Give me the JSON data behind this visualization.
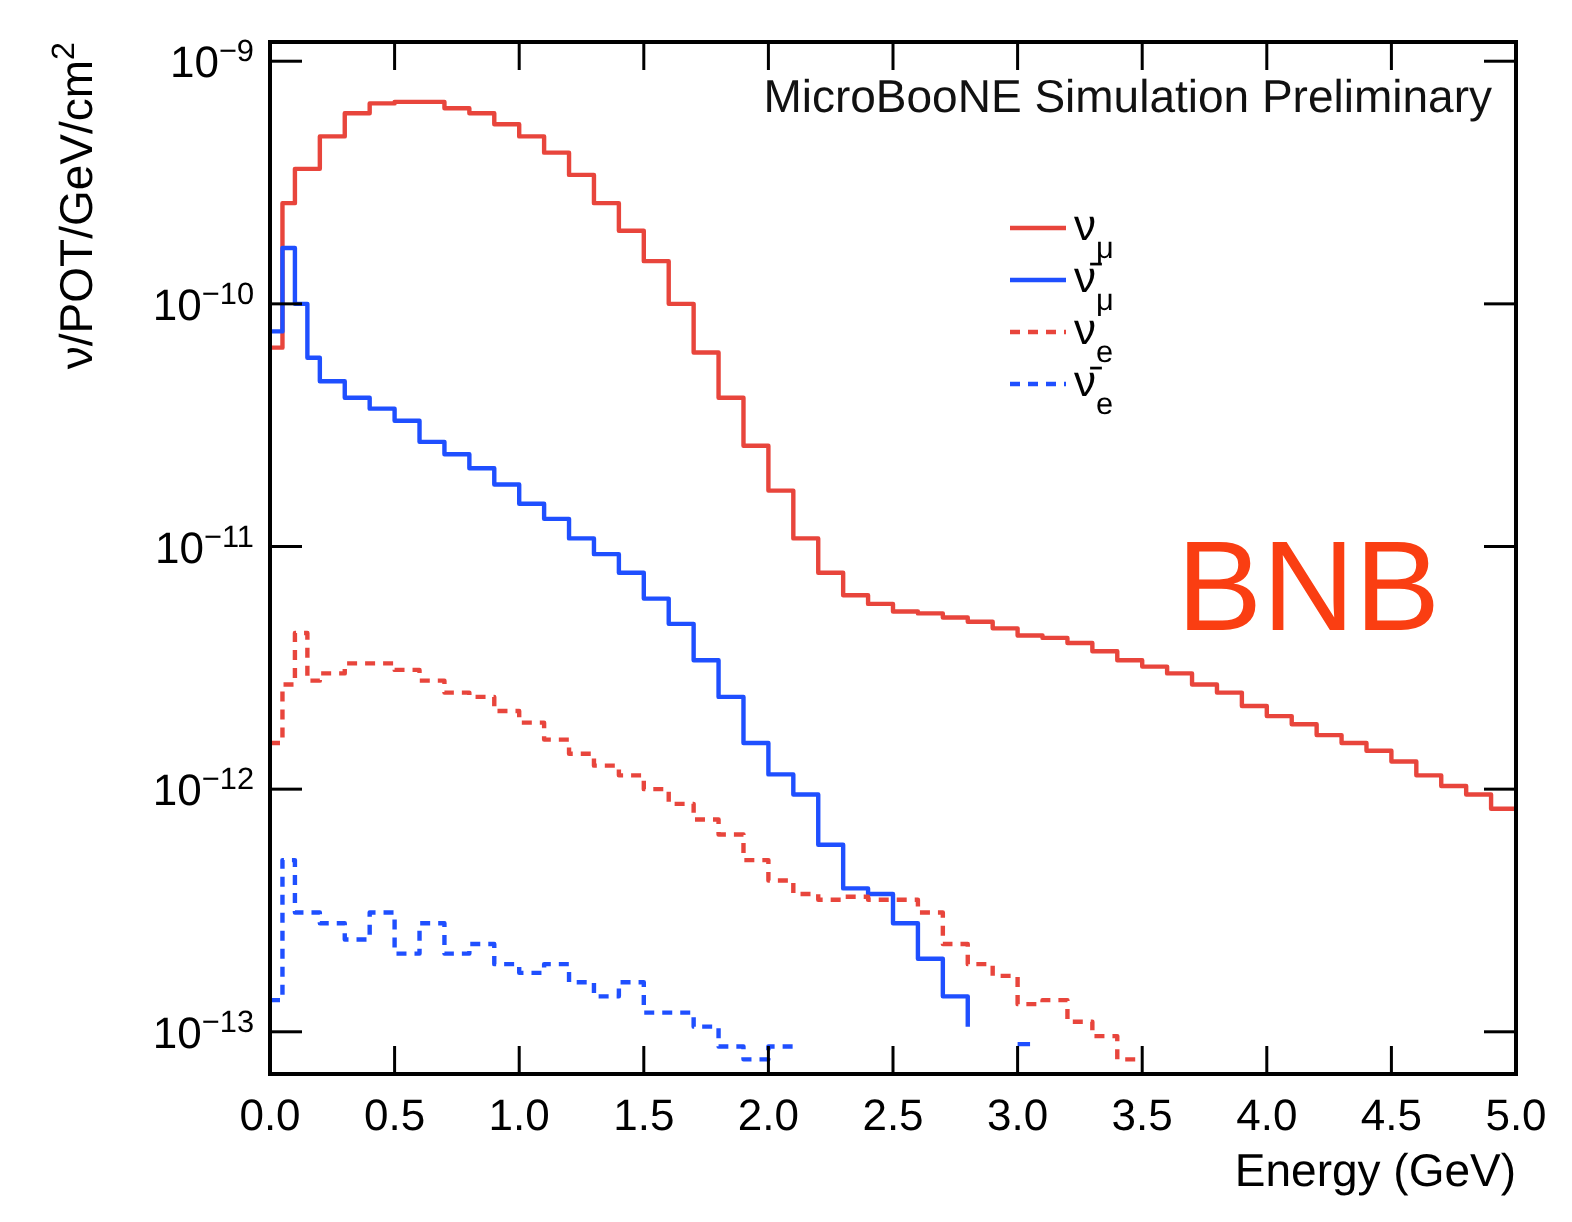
{
  "chart_data": {
    "type": "step",
    "xlabel": "Energy (GeV)",
    "ylabel": "ν/POT/GeV/cm$^{2}$",
    "log": "y",
    "legend": "top right",
    "xlim": [
      0,
      5
    ],
    "ylim": [
      6.7e-14,
      1.2e-09
    ],
    "xticks": [
      {
        "value": 0,
        "label": "0.0"
      },
      {
        "value": 0.5,
        "label": "0.5"
      },
      {
        "value": 1,
        "label": "1.0"
      },
      {
        "value": 1.5,
        "label": "1.5"
      },
      {
        "value": 2,
        "label": "2.0"
      },
      {
        "value": 2.5,
        "label": "2.5"
      },
      {
        "value": 3,
        "label": "3.0"
      },
      {
        "value": 3.5,
        "label": "3.5"
      },
      {
        "value": 4,
        "label": "4.0"
      },
      {
        "value": 4.5,
        "label": "4.5"
      },
      {
        "value": 5,
        "label": "5.0"
      }
    ],
    "yticks": [
      {
        "value": 1e-13,
        "label": "10$^{−13}$"
      },
      {
        "value": 1e-12,
        "label": "10$^{−12}$"
      },
      {
        "value": 1e-11,
        "label": "10$^{−11}$"
      },
      {
        "value": 1e-10,
        "label": "10$^{−10}$"
      },
      {
        "value": 1e-09,
        "label": "10$^{−9}$"
      }
    ],
    "annotations": [
      "MicroBooNE Simulation Preliminary",
      "BNB"
    ],
    "series": [
      {
        "name": "ν$_{μ}$",
        "color": "#e8453c",
        "line_style": "solid",
        "x": [
          0,
          0.05,
          0.1,
          0.2,
          0.3,
          0.4,
          0.5,
          0.6,
          0.7,
          0.8,
          0.9,
          1.0,
          1.1,
          1.2,
          1.3,
          1.4,
          1.5,
          1.6,
          1.7,
          1.8,
          1.9,
          2.0,
          2.1,
          2.2,
          2.3,
          2.4,
          2.5,
          2.6,
          2.7,
          2.8,
          2.9,
          3.0,
          3.1,
          3.2,
          3.3,
          3.4,
          3.5,
          3.6,
          3.7,
          3.8,
          3.9,
          4.0,
          4.1,
          4.2,
          4.3,
          4.4,
          4.5,
          4.6,
          4.7,
          4.8,
          4.9,
          5.0
        ],
        "values": [
          6.6e-11,
          2.6e-10,
          3.6e-10,
          4.9e-10,
          6.1e-10,
          6.7e-10,
          6.8e-10,
          6.8e-10,
          6.4e-10,
          6.1e-10,
          5.5e-10,
          4.9e-10,
          4.2e-10,
          3.4e-10,
          2.6e-10,
          2e-10,
          1.5e-10,
          1e-10,
          6.3e-11,
          4.1e-11,
          2.6e-11,
          1.7e-11,
          1.08e-11,
          7.8e-12,
          6.3e-12,
          5.8e-12,
          5.4e-12,
          5.3e-12,
          5.1e-12,
          4.9e-12,
          4.6e-12,
          4.3e-12,
          4.2e-12,
          4e-12,
          3.7e-12,
          3.4e-12,
          3.2e-12,
          3e-12,
          2.7e-12,
          2.5e-12,
          2.2e-12,
          2e-12,
          1.85e-12,
          1.67e-12,
          1.55e-12,
          1.44e-12,
          1.3e-12,
          1.14e-12,
          1.03e-12,
          9.5e-13,
          8.3e-13,
          8.3e-13
        ]
      },
      {
        "name": "ν̄$_{μ}$",
        "color": "#1f4fff",
        "line_style": "solid",
        "x": [
          0,
          0.05,
          0.1,
          0.15,
          0.2,
          0.3,
          0.4,
          0.5,
          0.6,
          0.7,
          0.8,
          0.9,
          1.0,
          1.1,
          1.2,
          1.3,
          1.4,
          1.5,
          1.6,
          1.7,
          1.8,
          1.9,
          2.0,
          2.1,
          2.2,
          2.3,
          2.4,
          2.5,
          2.6,
          2.7,
          2.8,
          2.9,
          3.0,
          3.05
        ],
        "values": [
          7.7e-11,
          1.7e-10,
          1e-10,
          6e-11,
          4.8e-11,
          4.1e-11,
          3.7e-11,
          3.3e-11,
          2.7e-11,
          2.4e-11,
          2.1e-11,
          1.8e-11,
          1.5e-11,
          1.3e-11,
          1.08e-11,
          9.3e-12,
          7.8e-12,
          6.1e-12,
          4.8e-12,
          3.4e-12,
          2.4e-12,
          1.55e-12,
          1.15e-12,
          9.5e-13,
          5.9e-13,
          3.9e-13,
          3.7e-13,
          2.8e-13,
          2e-13,
          1.4e-13,
          1.05e-13,
          null,
          8.9e-14,
          8.9e-14
        ]
      },
      {
        "name": "ν$_{e}$",
        "color": "#e8453c",
        "line_style": "dashed",
        "x": [
          0,
          0.05,
          0.1,
          0.15,
          0.2,
          0.3,
          0.4,
          0.5,
          0.6,
          0.7,
          0.8,
          0.9,
          1.0,
          1.1,
          1.2,
          1.3,
          1.4,
          1.5,
          1.6,
          1.7,
          1.8,
          1.9,
          2.0,
          2.1,
          2.2,
          2.3,
          2.4,
          2.5,
          2.6,
          2.7,
          2.8,
          2.9,
          3.0,
          3.1,
          3.2,
          3.3,
          3.4,
          3.5
        ],
        "values": [
          1.55e-12,
          2.7e-12,
          4.4e-12,
          2.8e-12,
          3e-12,
          3.3e-12,
          3.3e-12,
          3.1e-12,
          2.8e-12,
          2.5e-12,
          2.4e-12,
          2.1e-12,
          1.88e-12,
          1.6e-12,
          1.4e-12,
          1.25e-12,
          1.14e-12,
          1e-12,
          8.7e-13,
          7.5e-13,
          6.5e-13,
          5.1e-13,
          4.2e-13,
          3.7e-13,
          3.5e-13,
          3.6e-13,
          3.5e-13,
          3.5e-13,
          3.1e-13,
          2.3e-13,
          1.9e-13,
          1.7e-13,
          1.3e-13,
          1.35e-13,
          1.1e-13,
          9.6e-14,
          7.7e-14,
          7.7e-14
        ]
      },
      {
        "name": "ν̄$_{e}$",
        "color": "#1f4fff",
        "line_style": "dashed",
        "x": [
          0,
          0.05,
          0.1,
          0.2,
          0.3,
          0.4,
          0.5,
          0.6,
          0.7,
          0.8,
          0.9,
          1.0,
          1.1,
          1.2,
          1.3,
          1.4,
          1.5,
          1.6,
          1.7,
          1.8,
          1.9,
          2.0,
          2.1
        ],
        "values": [
          1.35e-13,
          5.1e-13,
          3.1e-13,
          2.8e-13,
          2.4e-13,
          3.1e-13,
          2.1e-13,
          2.8e-13,
          2.1e-13,
          2.3e-13,
          1.9e-13,
          1.75e-13,
          1.9e-13,
          1.6e-13,
          1.4e-13,
          1.6e-13,
          1.2e-13,
          1.2e-13,
          1.05e-13,
          8.7e-14,
          7.7e-14,
          8.7e-14,
          8.7e-14
        ]
      }
    ]
  }
}
